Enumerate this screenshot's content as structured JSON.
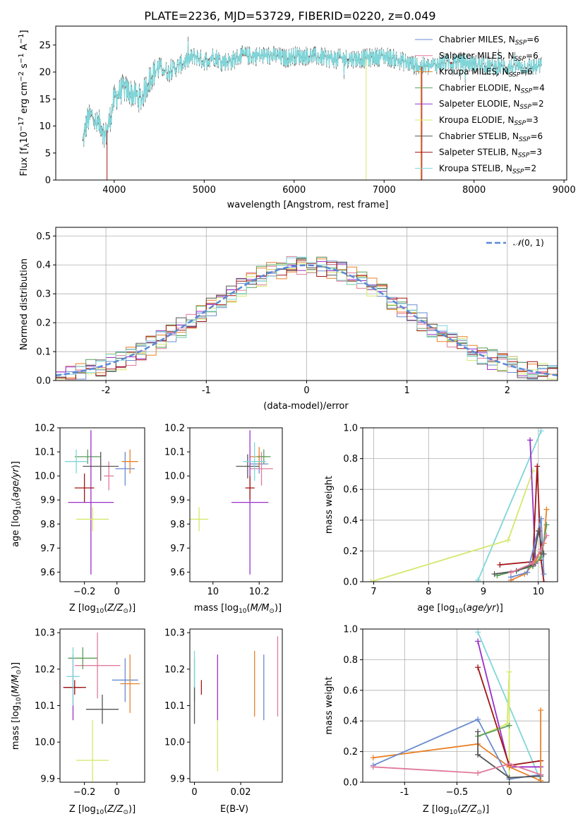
{
  "colors": {
    "Chabrier MILES": "#6a8ccf",
    "Salpeter MILES": "#e07b9a",
    "Kroupa MILES": "#e8822a",
    "Chabrier ELODIE": "#5a9e5a",
    "Salpeter ELODIE": "#9b30c9",
    "Kroupa ELODIE": "#d4e86b",
    "Chabrier STELIB": "#555555",
    "Salpeter STELIB": "#a01515",
    "Kroupa STELIB": "#7fd6d9"
  },
  "chart_data": [
    {
      "id": "spectrum",
      "type": "line",
      "title": "PLATE=2236, MJD=53729, FIBERID=0220, z=0.049",
      "xlabel": "wavelength [Angstrom, rest frame]",
      "ylabel": "Flux [f",
      "ylabel_rest": "10",
      "ylabel_units": " erg cm",
      "ylabel_s": " s",
      "ylabel_a": " A",
      "xlim": [
        3350,
        9030
      ],
      "ylim": [
        0,
        28.5
      ],
      "xticks": [
        4000,
        5000,
        6000,
        7000,
        8000,
        9000
      ],
      "yticks": [
        0,
        5,
        10,
        15,
        20,
        25
      ],
      "spectrum_anchors": [
        [
          3650,
          7
        ],
        [
          3700,
          11
        ],
        [
          3760,
          12
        ],
        [
          3800,
          10
        ],
        [
          3850,
          10.5
        ],
        [
          3900,
          8
        ],
        [
          3950,
          11
        ],
        [
          4000,
          15
        ],
        [
          4100,
          17
        ],
        [
          4200,
          16
        ],
        [
          4300,
          15
        ],
        [
          4400,
          19
        ],
        [
          4500,
          21
        ],
        [
          4600,
          20
        ],
        [
          4700,
          21
        ],
        [
          4800,
          22
        ],
        [
          4900,
          23
        ],
        [
          5000,
          22
        ],
        [
          5100,
          23
        ],
        [
          5200,
          22
        ],
        [
          5300,
          22
        ],
        [
          5400,
          23
        ],
        [
          5500,
          23
        ],
        [
          5600,
          23
        ],
        [
          5700,
          23
        ],
        [
          5800,
          23
        ],
        [
          5900,
          22.5
        ],
        [
          6000,
          23
        ],
        [
          6200,
          23
        ],
        [
          6400,
          22.5
        ],
        [
          6600,
          22.5
        ],
        [
          6800,
          22.5
        ],
        [
          7000,
          23
        ],
        [
          7100,
          22.5
        ],
        [
          7200,
          22
        ],
        [
          7300,
          21.5
        ],
        [
          7400,
          21
        ],
        [
          7500,
          21
        ],
        [
          7600,
          21.5
        ],
        [
          7800,
          22
        ],
        [
          8000,
          21.5
        ],
        [
          8200,
          21
        ],
        [
          8400,
          21
        ],
        [
          8600,
          21
        ],
        [
          8750,
          21
        ]
      ],
      "series": [
        {
          "name": "Chabrier MILES",
          "label_pre": "Chabrier MILES, N",
          "nssp": "6"
        },
        {
          "name": "Salpeter MILES",
          "label_pre": "Salpeter MILES, N",
          "nssp": "6"
        },
        {
          "name": "Kroupa MILES",
          "label_pre": "Kroupa MILES, N",
          "nssp": "6"
        },
        {
          "name": "Chabrier ELODIE",
          "label_pre": "Chabrier ELODIE, N",
          "nssp": "4"
        },
        {
          "name": "Salpeter ELODIE",
          "label_pre": "Salpeter ELODIE, N",
          "nssp": "2"
        },
        {
          "name": "Kroupa ELODIE",
          "label_pre": "Kroupa ELODIE, N",
          "nssp": "3"
        },
        {
          "name": "Chabrier STELIB",
          "label_pre": "Chabrier STELIB, N",
          "nssp": "6"
        },
        {
          "name": "Salpeter STELIB",
          "label_pre": "Salpeter STELIB, N",
          "nssp": "3"
        },
        {
          "name": "Kroupa STELIB",
          "label_pre": "Kroupa STELIB, N",
          "nssp": "2"
        }
      ],
      "legend_sub": "SSP",
      "legend": "top-right"
    },
    {
      "id": "residuals",
      "type": "histogram",
      "xlabel": "(data-model)/error",
      "ylabel": "Normed distribution",
      "xlim": [
        -2.5,
        2.5
      ],
      "ylim": [
        0,
        0.53
      ],
      "xticks": [
        -2,
        -1,
        0,
        1,
        2
      ],
      "yticks": [
        0.0,
        0.1,
        0.2,
        0.3,
        0.4,
        0.5
      ],
      "bin_width": 0.1,
      "bin_start": -2.5,
      "legend_label": "(0, 1)",
      "legend_symbol": "𝒩",
      "legend": "top-right",
      "grid": true
    },
    {
      "id": "age_vs_Z",
      "type": "errorbar",
      "xlabel": "Z [log",
      "xlabel_tail": "(Z/Z",
      "ylabel": "age  [log",
      "ylabel_tail": "(age/yr)]",
      "xlim": [
        -0.35,
        0.17
      ],
      "ylim": [
        9.56,
        10.2
      ],
      "xticks": [
        -0.2,
        0.0
      ],
      "yticks": [
        9.6,
        9.7,
        9.8,
        9.9,
        10.0,
        10.1,
        10.2
      ],
      "points": [
        {
          "s": "Chabrier MILES",
          "x": 0.05,
          "xe": 0.06,
          "y": 10.03,
          "ye": 0.07
        },
        {
          "s": "Salpeter MILES",
          "x": -0.05,
          "xe": 0.03,
          "y": 10.0,
          "ye": 0.06
        },
        {
          "s": "Kroupa MILES",
          "x": 0.08,
          "xe": 0.05,
          "y": 10.06,
          "ye": 0.05
        },
        {
          "s": "Chabrier ELODIE",
          "x": -0.18,
          "xe": 0.08,
          "y": 10.08,
          "ye": 0.03
        },
        {
          "s": "Salpeter ELODIE",
          "x": -0.16,
          "xe": 0.14,
          "y": 9.89,
          "ye": 0.3
        },
        {
          "s": "Kroupa ELODIE",
          "x": -0.15,
          "xe": 0.1,
          "y": 9.82,
          "ye": 0.05
        },
        {
          "s": "Chabrier STELIB",
          "x": -0.1,
          "xe": 0.11,
          "y": 10.04,
          "ye": 0.06
        },
        {
          "s": "Salpeter STELIB",
          "x": -0.2,
          "xe": 0.06,
          "y": 9.95,
          "ye": 0.06
        },
        {
          "s": "Kroupa STELIB",
          "x": -0.25,
          "xe": 0.07,
          "y": 10.06,
          "ye": 0.05
        }
      ]
    },
    {
      "id": "age_vs_mass",
      "type": "errorbar",
      "xlabel": "mass [log",
      "xlabel_tail": "(M/M",
      "xlim": [
        9.9,
        10.3
      ],
      "ylim": [
        9.56,
        10.2
      ],
      "xticks": [
        10.0,
        10.2
      ],
      "yticks": [
        9.6,
        9.7,
        9.8,
        9.9,
        10.0,
        10.1,
        10.2
      ],
      "points": [
        {
          "s": "Chabrier MILES",
          "x": 10.2,
          "xe": 0.04,
          "y": 10.05,
          "ye": 0.04
        },
        {
          "s": "Salpeter MILES",
          "x": 10.21,
          "xe": 0.05,
          "y": 10.03,
          "ye": 0.07
        },
        {
          "s": "Kroupa MILES",
          "x": 10.2,
          "xe": 0.04,
          "y": 10.08,
          "ye": 0.04
        },
        {
          "s": "Chabrier ELODIE",
          "x": 10.22,
          "xe": 0.03,
          "y": 10.08,
          "ye": 0.03
        },
        {
          "s": "Salpeter ELODIE",
          "x": 10.16,
          "xe": 0.08,
          "y": 9.89,
          "ye": 0.3
        },
        {
          "s": "Kroupa ELODIE",
          "x": 9.94,
          "xe": 0.04,
          "y": 9.82,
          "ye": 0.05
        },
        {
          "s": "Chabrier STELIB",
          "x": 10.15,
          "xe": 0.05,
          "y": 10.04,
          "ye": 0.05
        },
        {
          "s": "Salpeter STELIB",
          "x": 10.16,
          "xe": 0.02,
          "y": 9.95,
          "ye": 0.05
        },
        {
          "s": "Kroupa STELIB",
          "x": 10.18,
          "xe": 0.05,
          "y": 10.06,
          "ye": 0.08
        }
      ]
    },
    {
      "id": "mass_weight_vs_age",
      "type": "line",
      "xlabel": "age  [log",
      "xlabel_tail": "(age/yr)]",
      "ylabel": "mass weight",
      "xlim": [
        6.8,
        10.35
      ],
      "ylim": [
        0,
        1.0
      ],
      "xticks": [
        7,
        8,
        9,
        10
      ],
      "yticks": [
        0.0,
        0.2,
        0.4,
        0.6,
        0.8,
        1.0
      ],
      "grid": true,
      "series": [
        {
          "s": "Kroupa STELIB",
          "points": [
            [
              8.9,
              0.01
            ],
            [
              10.05,
              0.98
            ]
          ]
        },
        {
          "s": "Kroupa ELODIE",
          "points": [
            [
              6.95,
              0.0
            ],
            [
              9.45,
              0.27
            ],
            [
              9.9,
              0.72
            ]
          ]
        },
        {
          "s": "Salpeter ELODIE",
          "points": [
            [
              9.85,
              0.92
            ],
            [
              9.95,
              0.12
            ]
          ]
        },
        {
          "s": "Salpeter STELIB",
          "points": [
            [
              9.3,
              0.11
            ],
            [
              9.9,
              0.13
            ],
            [
              9.98,
              0.75
            ],
            [
              10.05,
              0.14
            ],
            [
              10.1,
              0.0
            ]
          ]
        },
        {
          "s": "Kroupa MILES",
          "points": [
            [
              9.5,
              0.01
            ],
            [
              9.75,
              0.05
            ],
            [
              9.95,
              0.13
            ],
            [
              10.1,
              0.25
            ],
            [
              10.15,
              0.47
            ]
          ]
        },
        {
          "s": "Chabrier MILES",
          "points": [
            [
              9.5,
              0.03
            ],
            [
              9.8,
              0.06
            ],
            [
              10.05,
              0.41
            ],
            [
              10.1,
              0.05
            ]
          ]
        },
        {
          "s": "Chabrier ELODIE",
          "points": [
            [
              9.25,
              0.04
            ],
            [
              9.9,
              0.1
            ],
            [
              10.05,
              0.16
            ],
            [
              10.15,
              0.37
            ]
          ]
        },
        {
          "s": "Chabrier STELIB",
          "points": [
            [
              9.2,
              0.05
            ],
            [
              9.6,
              0.07
            ],
            [
              9.9,
              0.11
            ],
            [
              10.0,
              0.33
            ],
            [
              10.1,
              0.18
            ]
          ]
        },
        {
          "s": "Salpeter MILES",
          "points": [
            [
              9.5,
              0.06
            ],
            [
              9.9,
              0.12
            ],
            [
              10.05,
              0.21
            ],
            [
              10.15,
              0.3
            ]
          ]
        }
      ]
    },
    {
      "id": "mass_vs_Z",
      "type": "errorbar",
      "xlabel": "Z [log",
      "xlabel_tail": "(Z/Z",
      "ylabel": "mass [log",
      "ylabel_tail": "(M/M",
      "xlim": [
        -0.35,
        0.17
      ],
      "ylim": [
        9.89,
        10.31
      ],
      "xticks": [
        -0.2,
        0.0
      ],
      "yticks": [
        9.9,
        10.0,
        10.1,
        10.2,
        10.3
      ],
      "points": [
        {
          "s": "Chabrier MILES",
          "x": 0.05,
          "xe": 0.08,
          "y": 10.17,
          "ye": 0.06
        },
        {
          "s": "Salpeter MILES",
          "x": -0.12,
          "xe": 0.14,
          "y": 10.21,
          "ye": 0.09
        },
        {
          "s": "Kroupa MILES",
          "x": 0.08,
          "xe": 0.06,
          "y": 10.16,
          "ye": 0.08
        },
        {
          "s": "Chabrier ELODIE",
          "x": -0.21,
          "xe": 0.09,
          "y": 10.23,
          "ye": 0.03
        },
        {
          "s": "Salpeter ELODIE",
          "x": -0.27,
          "xe": 0.05,
          "y": 10.15,
          "ye": 0.09
        },
        {
          "s": "Kroupa ELODIE",
          "x": -0.15,
          "xe": 0.1,
          "y": 9.95,
          "ye": 0.11
        },
        {
          "s": "Chabrier STELIB",
          "x": -0.09,
          "xe": 0.1,
          "y": 10.09,
          "ye": 0.04
        },
        {
          "s": "Salpeter STELIB",
          "x": -0.26,
          "xe": 0.07,
          "y": 10.15,
          "ye": 0.02
        },
        {
          "s": "Kroupa STELIB",
          "x": -0.27,
          "xe": 0.04,
          "y": 10.18,
          "ye": 0.08
        }
      ]
    },
    {
      "id": "mass_vs_EBV",
      "type": "errorbar",
      "xlabel": "E(B-V)",
      "xlim": [
        -0.002,
        0.038
      ],
      "ylim": [
        9.89,
        10.31
      ],
      "xticks": [
        0.0,
        0.02
      ],
      "yticks": [
        9.9,
        10.0,
        10.1,
        10.2,
        10.3
      ],
      "points": [
        {
          "s": "Chabrier MILES",
          "x": 0.03,
          "xe": 0,
          "y": 10.15,
          "ye": 0.09
        },
        {
          "s": "Salpeter MILES",
          "x": 0.036,
          "xe": 0,
          "y": 10.18,
          "ye": 0.11
        },
        {
          "s": "Kroupa MILES",
          "x": 0.026,
          "xe": 0,
          "y": 10.16,
          "ye": 0.09
        },
        {
          "s": "Chabrier ELODIE",
          "x": 0.0,
          "xe": 0,
          "y": 10.17,
          "ye": 0.06
        },
        {
          "s": "Salpeter ELODIE",
          "x": 0.01,
          "xe": 0,
          "y": 10.15,
          "ye": 0.09
        },
        {
          "s": "Kroupa ELODIE",
          "x": 0.01,
          "xe": 0,
          "y": 9.99,
          "ye": 0.07
        },
        {
          "s": "Chabrier STELIB",
          "x": 0.0,
          "xe": 0,
          "y": 10.1,
          "ye": 0.05
        },
        {
          "s": "Salpeter STELIB",
          "x": 0.003,
          "xe": 0,
          "y": 10.15,
          "ye": 0.02
        },
        {
          "s": "Kroupa STELIB",
          "x": 0.0,
          "xe": 0,
          "y": 10.2,
          "ye": 0.05
        }
      ]
    },
    {
      "id": "mass_weight_vs_Z",
      "type": "line",
      "xlabel": "Z [log",
      "xlabel_tail": "(Z/Z",
      "ylabel": "mass weight",
      "xlim": [
        -1.4,
        0.38
      ],
      "ylim": [
        0,
        1.0
      ],
      "xticks": [
        -1.0,
        -0.5,
        0.0
      ],
      "yticks": [
        0.0,
        0.2,
        0.4,
        0.6,
        0.8,
        1.0
      ],
      "grid": true,
      "series": [
        {
          "s": "Kroupa STELIB",
          "points": [
            [
              -0.3,
              0.98
            ],
            [
              0.3,
              0.01
            ]
          ]
        },
        {
          "s": "Kroupa ELODIE",
          "points": [
            [
              -0.3,
              0.3
            ],
            [
              -0.02,
              0.38
            ],
            [
              0.0,
              0.72
            ],
            [
              0.0,
              0.0
            ]
          ]
        },
        {
          "s": "Salpeter ELODIE",
          "points": [
            [
              -0.3,
              0.92
            ],
            [
              0.0,
              0.1
            ],
            [
              0.3,
              0.1
            ]
          ]
        },
        {
          "s": "Salpeter STELIB",
          "points": [
            [
              -0.3,
              0.75
            ],
            [
              0.0,
              0.11
            ],
            [
              0.3,
              0.14
            ]
          ]
        },
        {
          "s": "Kroupa MILES",
          "points": [
            [
              -1.3,
              0.16
            ],
            [
              -0.3,
              0.25
            ],
            [
              0.0,
              0.1
            ],
            [
              0.3,
              0.01
            ],
            [
              0.3,
              0.47
            ]
          ]
        },
        {
          "s": "Chabrier MILES",
          "points": [
            [
              -1.3,
              0.11
            ],
            [
              -0.3,
              0.41
            ],
            [
              0.0,
              0.02
            ],
            [
              0.3,
              0.05
            ]
          ]
        },
        {
          "s": "Chabrier ELODIE",
          "points": [
            [
              -0.3,
              0.3
            ],
            [
              0.0,
              0.37
            ]
          ]
        },
        {
          "s": "Chabrier STELIB",
          "points": [
            [
              -0.3,
              0.33
            ],
            [
              -0.3,
              0.18
            ],
            [
              0.0,
              0.03
            ],
            [
              0.3,
              0.04
            ]
          ]
        },
        {
          "s": "Salpeter MILES",
          "points": [
            [
              -1.3,
              0.1
            ],
            [
              -0.3,
              0.06
            ],
            [
              0.0,
              0.12
            ],
            [
              0.3,
              0.05
            ]
          ]
        }
      ]
    }
  ]
}
